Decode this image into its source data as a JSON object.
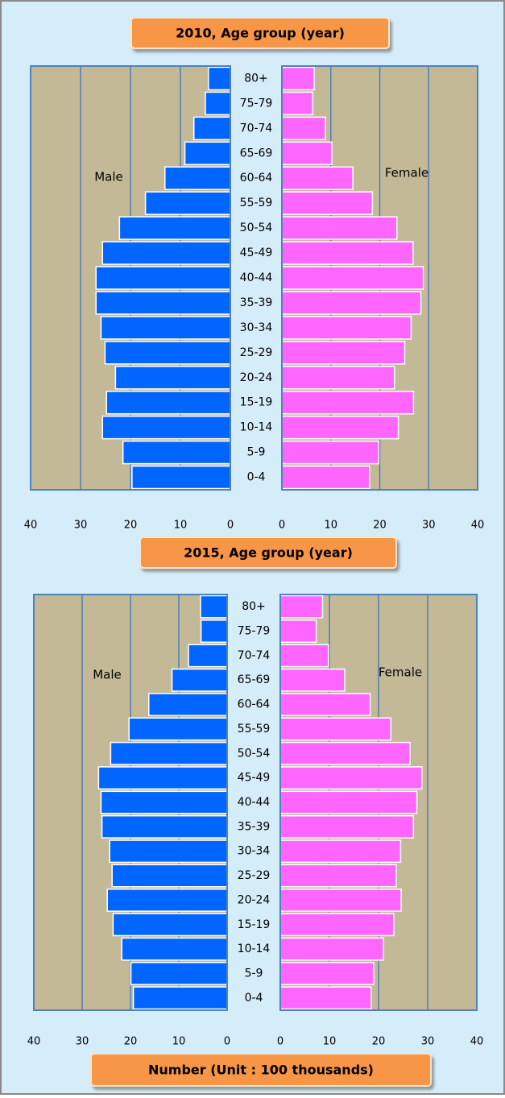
{
  "chart_data": [
    {
      "type": "pyramid",
      "title": "2010, Age group (year)",
      "categories": [
        "80+",
        "75-79",
        "70-74",
        "65-69",
        "60-64",
        "55-59",
        "50-54",
        "45-49",
        "40-44",
        "35-39",
        "30-34",
        "25-29",
        "20-24",
        "15-19",
        "10-14",
        "5-9",
        "0-4"
      ],
      "series": [
        {
          "name": "Male",
          "color": "#0066ff",
          "values": [
            4.4,
            5.0,
            7.3,
            9.1,
            13.1,
            17.0,
            22.2,
            25.6,
            26.9,
            26.9,
            25.9,
            25.1,
            23.0,
            24.8,
            25.6,
            21.5,
            19.7
          ]
        },
        {
          "name": "Female",
          "color": "#ff66ff",
          "values": [
            6.6,
            6.3,
            8.9,
            10.2,
            14.5,
            18.5,
            23.5,
            26.8,
            28.9,
            28.4,
            26.4,
            25.1,
            23.0,
            26.9,
            23.8,
            19.8,
            17.9
          ]
        }
      ],
      "xlim": [
        0,
        40
      ],
      "xticks": [
        0,
        10,
        20,
        30,
        40
      ],
      "grid": true
    },
    {
      "type": "pyramid",
      "title": "2015, Age group (year)",
      "categories": [
        "80+",
        "75-79",
        "70-74",
        "65-69",
        "60-64",
        "55-59",
        "50-54",
        "45-49",
        "40-44",
        "35-39",
        "30-34",
        "25-29",
        "20-24",
        "15-19",
        "10-14",
        "5-9",
        "0-4"
      ],
      "series": [
        {
          "name": "Male",
          "color": "#0066ff",
          "values": [
            5.5,
            5.4,
            8.0,
            11.4,
            16.2,
            20.3,
            24.1,
            26.6,
            26.1,
            25.9,
            24.3,
            23.8,
            24.8,
            23.6,
            21.8,
            19.9,
            19.4
          ]
        },
        {
          "name": "Female",
          "color": "#ff66ff",
          "values": [
            8.6,
            7.3,
            9.8,
            13.1,
            18.3,
            22.5,
            26.4,
            28.8,
            27.8,
            27.1,
            24.5,
            23.6,
            24.6,
            23.1,
            21.0,
            19.0,
            18.5
          ]
        }
      ],
      "xlim": [
        0,
        40
      ],
      "xticks": [
        0,
        10,
        20,
        30,
        40
      ],
      "grid": true,
      "x_label": "Number (Unit : 100 thousands)"
    }
  ]
}
